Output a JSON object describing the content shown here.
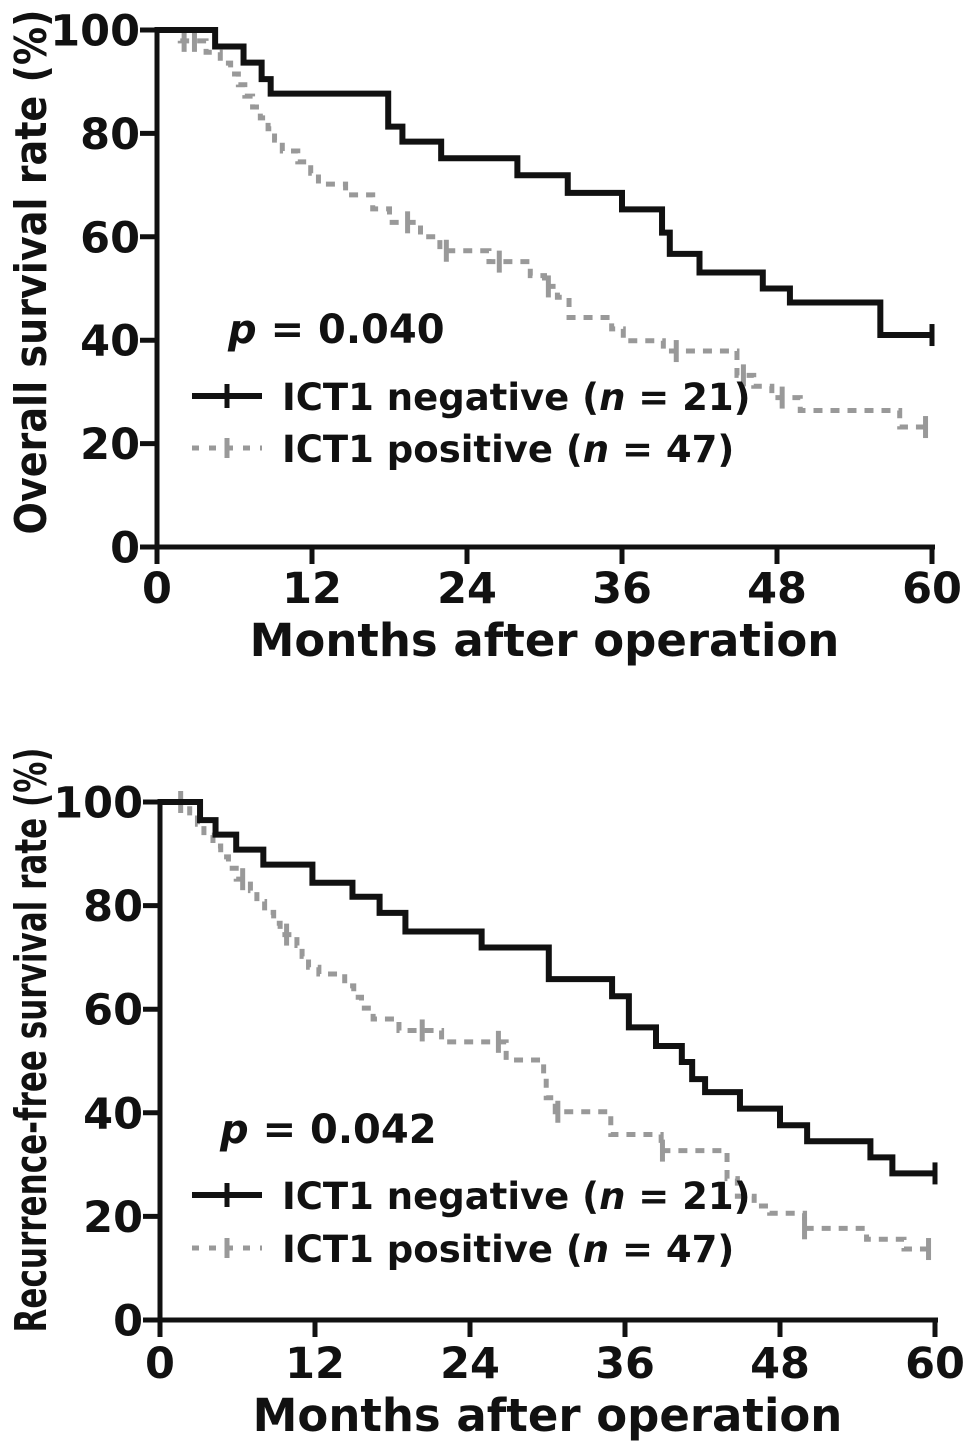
{
  "figure": {
    "background": "#ffffff",
    "curve_black": "#111111",
    "curve_gray": "#999999"
  },
  "chart_data": [
    {
      "id": "overall-survival",
      "type": "line",
      "subtype": "kaplan-meier-step",
      "title": "",
      "ylabel": "Overall survival rate (%)",
      "xlabel": "Months after operation",
      "xticks": [
        0,
        12,
        24,
        36,
        48,
        60
      ],
      "yticks": [
        100,
        80,
        60,
        40,
        20,
        0
      ],
      "xlim": [
        0,
        60
      ],
      "ylim": [
        0,
        100
      ],
      "grid": false,
      "legend_position": "inside-lower-left",
      "p_label": {
        "symbol": "p",
        "text": " = 0.040"
      },
      "legend": [
        {
          "pre": "ICT1 negative  (",
          "n_symbol": "n",
          "post": " = 21)",
          "style": "solid-black"
        },
        {
          "pre": "ICT1 positive (",
          "n_symbol": "n",
          "post": " = 47)",
          "style": "dashed-gray"
        }
      ],
      "series": [
        {
          "name": "ICT1 negative",
          "n": 21,
          "color": "#111111",
          "dash": null,
          "points": [
            [
              0,
              100
            ],
            [
              4.5,
              96.8
            ],
            [
              6.7,
              93.7
            ],
            [
              8.1,
              90.5
            ],
            [
              8.8,
              87.7
            ],
            [
              17.9,
              81.3
            ],
            [
              19.0,
              78.4
            ],
            [
              22.0,
              75.2
            ],
            [
              27.9,
              71.9
            ],
            [
              31.8,
              68.5
            ],
            [
              36.0,
              65.3
            ],
            [
              39.1,
              60.8
            ],
            [
              39.7,
              56.7
            ],
            [
              42.0,
              53.1
            ],
            [
              46.9,
              50.0
            ],
            [
              49.0,
              47.3
            ],
            [
              56.0,
              41.0
            ]
          ],
          "end": 60,
          "censors": [
            [
              60,
              41.0
            ]
          ]
        },
        {
          "name": "ICT1 positive",
          "n": 47,
          "color": "#999999",
          "dash": [
            9,
            8
          ],
          "points": [
            [
              0,
              100
            ],
            [
              1.8,
              97.9
            ],
            [
              3.8,
              95.7
            ],
            [
              4.9,
              93.6
            ],
            [
              5.7,
              91.5
            ],
            [
              6.3,
              89.4
            ],
            [
              6.8,
              87.2
            ],
            [
              7.4,
              85.1
            ],
            [
              8.0,
              83.0
            ],
            [
              8.6,
              80.9
            ],
            [
              9.1,
              78.7
            ],
            [
              9.7,
              76.6
            ],
            [
              10.9,
              74.5
            ],
            [
              11.9,
              72.3
            ],
            [
              12.5,
              70.2
            ],
            [
              14.6,
              68.1
            ],
            [
              16.7,
              65.4
            ],
            [
              18.0,
              62.8
            ],
            [
              20.4,
              60.0
            ],
            [
              21.9,
              57.3
            ],
            [
              25.7,
              55.2
            ],
            [
              28.9,
              52.5
            ],
            [
              30.0,
              50.4
            ],
            [
              31.0,
              48.3
            ],
            [
              31.9,
              44.4
            ],
            [
              35.2,
              42.2
            ],
            [
              36.1,
              39.9
            ],
            [
              39.2,
              37.9
            ],
            [
              44.9,
              33.2
            ],
            [
              46.2,
              31.1
            ],
            [
              47.6,
              28.9
            ],
            [
              49.8,
              26.4
            ],
            [
              57.5,
              23.2
            ]
          ],
          "end": 60,
          "censors": [
            [
              2.1,
              97.9
            ],
            [
              2.9,
              97.9
            ],
            [
              19.4,
              62.8
            ],
            [
              22.4,
              57.3
            ],
            [
              26.5,
              55.2
            ],
            [
              30.3,
              50.4
            ],
            [
              40.2,
              37.9
            ],
            [
              45.4,
              33.2
            ],
            [
              48.4,
              28.9
            ],
            [
              59.5,
              23.2
            ]
          ]
        }
      ]
    },
    {
      "id": "recurrence-free-survival",
      "type": "line",
      "subtype": "kaplan-meier-step",
      "title": "",
      "ylabel": "Recurrence-free survival rate (%)",
      "xlabel": "Months after operation",
      "xticks": [
        0,
        12,
        24,
        36,
        48,
        60
      ],
      "yticks": [
        100,
        80,
        60,
        40,
        20,
        0
      ],
      "xlim": [
        0,
        60
      ],
      "ylim": [
        0,
        100
      ],
      "grid": false,
      "legend_position": "inside-lower-left",
      "p_label": {
        "symbol": "p",
        "text": " = 0.042"
      },
      "legend": [
        {
          "pre": "ICT1 negative  (",
          "n_symbol": "n",
          "post": " = 21)",
          "style": "solid-black"
        },
        {
          "pre": "ICT1 positive (",
          "n_symbol": "n",
          "post": " = 47)",
          "style": "dashed-gray"
        }
      ],
      "series": [
        {
          "name": "ICT1 negative",
          "n": 21,
          "color": "#111111",
          "dash": null,
          "points": [
            [
              0,
              100
            ],
            [
              3.1,
              96.5
            ],
            [
              4.3,
              93.7
            ],
            [
              5.9,
              90.8
            ],
            [
              8.0,
              87.9
            ],
            [
              11.8,
              84.4
            ],
            [
              14.9,
              81.7
            ],
            [
              17.0,
              78.6
            ],
            [
              19.0,
              75.0
            ],
            [
              24.9,
              71.9
            ],
            [
              30.1,
              65.8
            ],
            [
              35.0,
              62.5
            ],
            [
              36.3,
              56.5
            ],
            [
              38.4,
              52.9
            ],
            [
              40.4,
              49.8
            ],
            [
              41.2,
              46.5
            ],
            [
              42.2,
              44.0
            ],
            [
              44.9,
              40.8
            ],
            [
              48.0,
              37.6
            ],
            [
              50.1,
              34.5
            ],
            [
              55.0,
              31.4
            ],
            [
              56.7,
              28.3
            ]
          ],
          "end": 60,
          "censors": [
            [
              60,
              28.3
            ]
          ]
        },
        {
          "name": "ICT1 positive",
          "n": 47,
          "color": "#999999",
          "dash": [
            9,
            8
          ],
          "points": [
            [
              0,
              100
            ],
            [
              2.3,
              97.9
            ],
            [
              2.9,
              95.7
            ],
            [
              3.4,
              93.6
            ],
            [
              4.1,
              91.5
            ],
            [
              4.7,
              89.4
            ],
            [
              5.3,
              87.2
            ],
            [
              5.9,
              85.1
            ],
            [
              7.0,
              82.9
            ],
            [
              7.5,
              80.8
            ],
            [
              8.1,
              78.7
            ],
            [
              8.8,
              76.6
            ],
            [
              9.3,
              74.4
            ],
            [
              10.6,
              72.3
            ],
            [
              11.0,
              70.2
            ],
            [
              11.5,
              68.1
            ],
            [
              12.3,
              66.8
            ],
            [
              14.3,
              64.5
            ],
            [
              15.0,
              62.3
            ],
            [
              15.6,
              60.2
            ],
            [
              16.5,
              58.1
            ],
            [
              18.5,
              55.9
            ],
            [
              21.8,
              53.7
            ],
            [
              26.8,
              50.2
            ],
            [
              29.7,
              46.6
            ],
            [
              29.9,
              42.9
            ],
            [
              30.6,
              40.2
            ],
            [
              34.9,
              35.8
            ],
            [
              38.8,
              32.7
            ],
            [
              43.9,
              27.3
            ],
            [
              44.7,
              23.9
            ],
            [
              46.0,
              22.0
            ],
            [
              47.2,
              20.6
            ],
            [
              49.9,
              17.7
            ],
            [
              54.7,
              15.6
            ],
            [
              57.6,
              13.7
            ]
          ],
          "end": 60,
          "censors": [
            [
              1.6,
              100
            ],
            [
              6.4,
              85.1
            ],
            [
              9.8,
              74.4
            ],
            [
              20.3,
              55.9
            ],
            [
              26.2,
              53.7
            ],
            [
              30.8,
              40.2
            ],
            [
              38.9,
              32.7
            ],
            [
              49.9,
              17.7
            ],
            [
              59.5,
              13.7
            ]
          ]
        }
      ]
    }
  ]
}
